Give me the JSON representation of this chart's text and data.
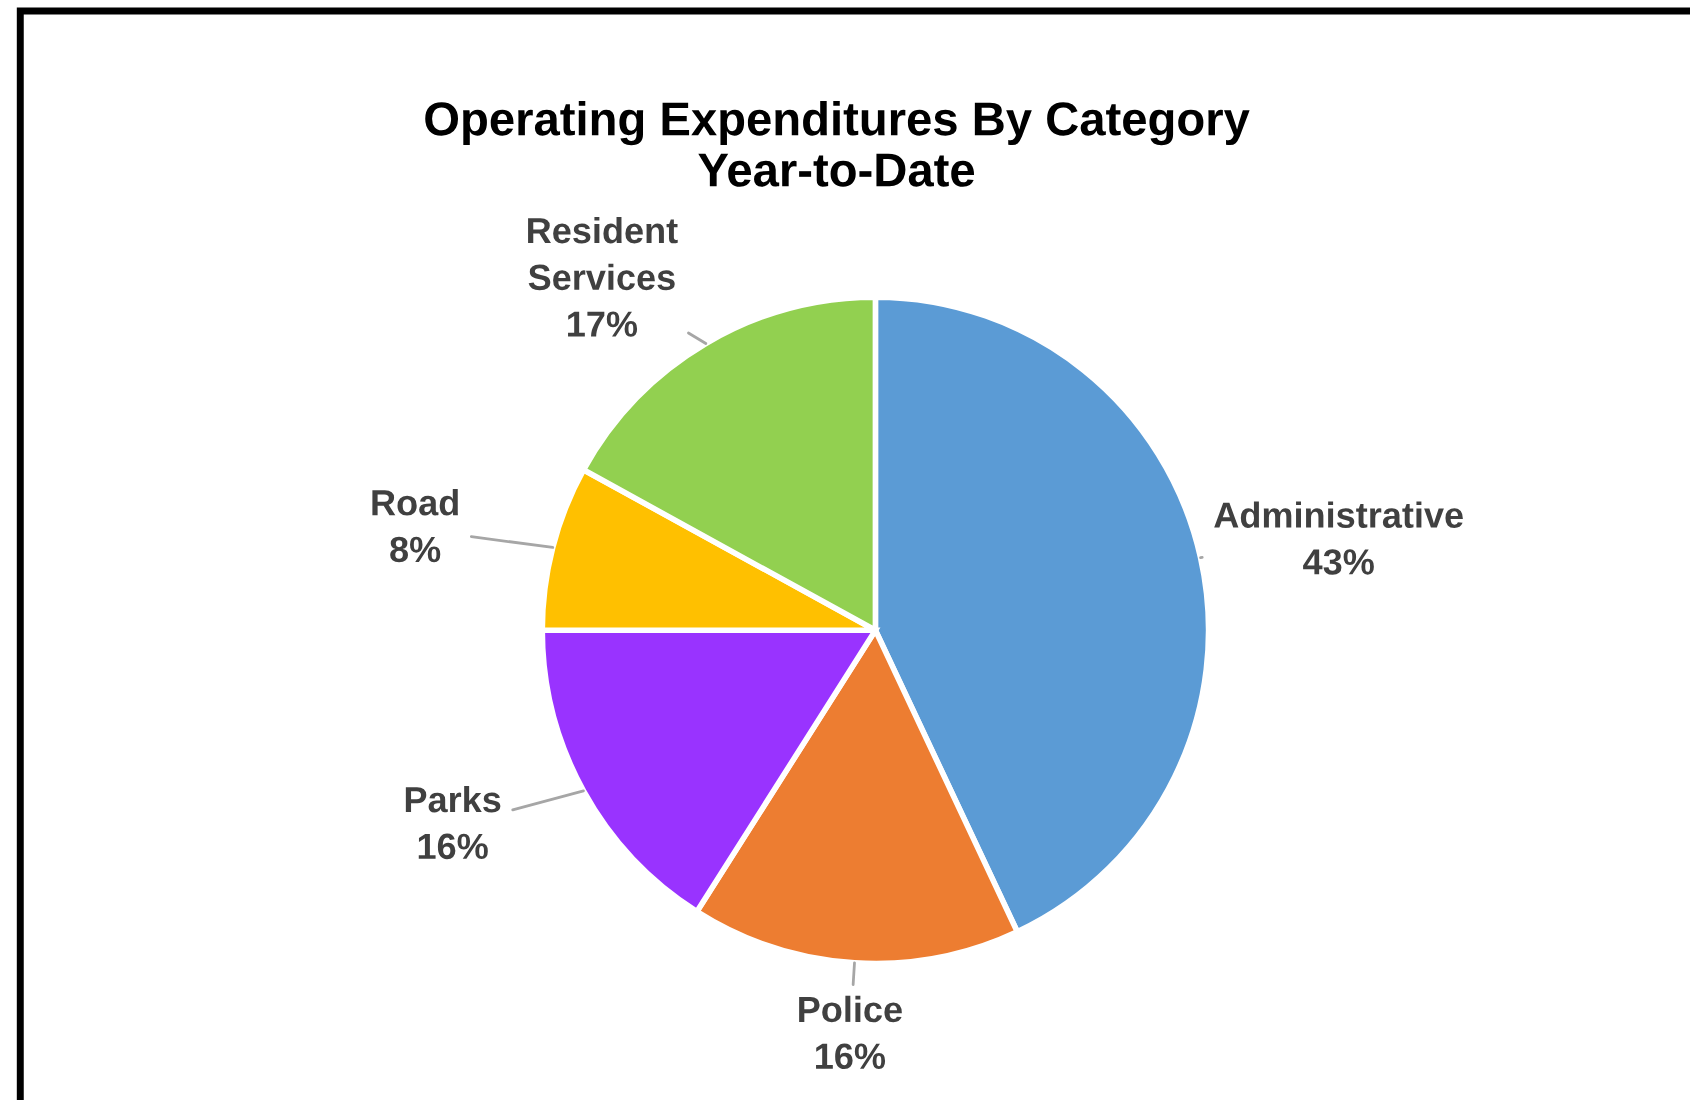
{
  "chart_data": {
    "type": "pie",
    "title": "Operating Expenditures By Category\nYear-to-Date",
    "categories": [
      "Administrative",
      "Police",
      "Parks",
      "Road",
      "Resident Services"
    ],
    "values": [
      43,
      16,
      16,
      8,
      17
    ],
    "value_labels": [
      "43%",
      "16%",
      "16%",
      "8%",
      "17%"
    ],
    "colors": [
      "#5b9bd5",
      "#ed7d31",
      "#9933ff",
      "#ffc000",
      "#92d050"
    ],
    "legend": false
  }
}
